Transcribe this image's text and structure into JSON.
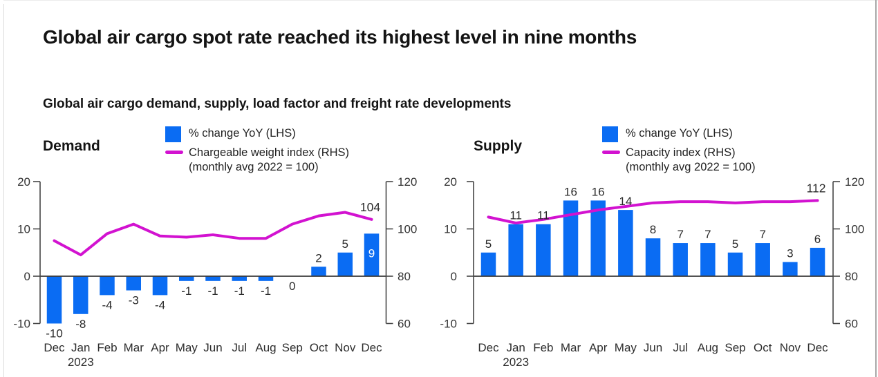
{
  "header": {
    "title": "Global air cargo spot rate reached its highest level in nine months",
    "subtitle": "Global air cargo demand, supply, load factor and freight rate developments"
  },
  "colors": {
    "bar": "#0a6cf3",
    "line": "#d212d0",
    "axis": "#454545",
    "label": "#2a2a2a",
    "inside_label": "#ffffff"
  },
  "chart_data": [
    {
      "type": "bar+line",
      "name": "Demand",
      "categories": [
        "Dec",
        "Jan",
        "Feb",
        "Mar",
        "Apr",
        "May",
        "Jun",
        "Jul",
        "Aug",
        "Sep",
        "Oct",
        "Nov",
        "Dec"
      ],
      "year_label": "2023",
      "year_label_under_index": 1,
      "legend": [
        {
          "swatch": "bar",
          "label": "% change YoY (LHS)"
        },
        {
          "swatch": "line",
          "label": "Chargeable weight index (RHS)",
          "sublabel": "(monthly avg 2022 = 100)"
        }
      ],
      "left_axis": {
        "ticks": [
          20,
          10,
          0,
          -10
        ],
        "range": [
          -10,
          20
        ]
      },
      "right_axis": {
        "ticks": [
          120,
          100,
          80,
          60
        ],
        "range": [
          60,
          120
        ]
      },
      "series": [
        {
          "name": "% change YoY (LHS)",
          "type": "bar",
          "axis": "left",
          "values": [
            -10,
            -8,
            -4,
            -3,
            -4,
            -1,
            -1,
            -1,
            -1,
            0,
            2,
            5,
            9
          ],
          "inside_label_index": 12
        },
        {
          "name": "Chargeable weight index (RHS) (monthly avg 2022 = 100)",
          "type": "line",
          "axis": "right",
          "values": [
            95,
            89,
            98,
            102,
            97,
            96.5,
            97.5,
            96,
            96,
            102,
            105.5,
            107,
            104
          ],
          "end_label": "104"
        }
      ]
    },
    {
      "type": "bar+line",
      "name": "Supply",
      "categories": [
        "Dec",
        "Jan",
        "Feb",
        "Mar",
        "Apr",
        "May",
        "Jun",
        "Jul",
        "Aug",
        "Sep",
        "Oct",
        "Nov",
        "Dec"
      ],
      "year_label": "2023",
      "year_label_under_index": 1,
      "legend": [
        {
          "swatch": "bar",
          "label": "% change YoY (LHS)"
        },
        {
          "swatch": "line",
          "label": "Capacity index (RHS)",
          "sublabel": "(monthly avg 2022 = 100)"
        }
      ],
      "left_axis": {
        "ticks": [
          20,
          10,
          0,
          -10
        ],
        "range": [
          -10,
          20
        ]
      },
      "right_axis": {
        "ticks": [
          120,
          100,
          80,
          60
        ],
        "range": [
          60,
          120
        ]
      },
      "series": [
        {
          "name": "% change YoY (LHS)",
          "type": "bar",
          "axis": "left",
          "values": [
            5,
            11,
            11,
            16,
            16,
            14,
            8,
            7,
            7,
            5,
            7,
            3,
            6
          ]
        },
        {
          "name": "Capacity index (RHS) (monthly avg 2022 = 100)",
          "type": "line",
          "axis": "right",
          "values": [
            105,
            102.5,
            104,
            106,
            108,
            109.5,
            111,
            111.5,
            111.5,
            111,
            111.5,
            111.5,
            112
          ],
          "end_label": "112"
        }
      ]
    }
  ]
}
